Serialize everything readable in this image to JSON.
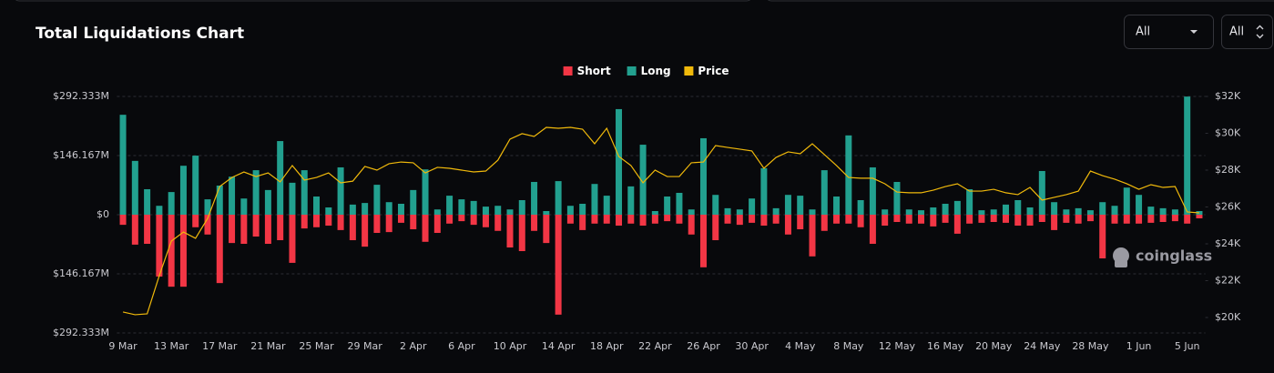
{
  "ui": {
    "dropdowns": [
      "All",
      "All"
    ],
    "watermark": "coinglass"
  },
  "chart_data": {
    "type": "bar",
    "title": "Total Liquidations Chart",
    "categories": [
      "9 Mar",
      null,
      null,
      null,
      "13 Mar",
      null,
      null,
      null,
      "17 Mar",
      null,
      null,
      null,
      "21 Mar",
      null,
      null,
      null,
      "25 Mar",
      null,
      null,
      null,
      "29 Mar",
      null,
      null,
      null,
      "2 Apr",
      null,
      null,
      null,
      "6 Apr",
      null,
      null,
      null,
      "10 Apr",
      null,
      null,
      null,
      "14 Apr",
      null,
      null,
      null,
      "18 Apr",
      null,
      null,
      null,
      "22 Apr",
      null,
      null,
      null,
      "26 Apr",
      null,
      null,
      null,
      "30 Apr",
      null,
      null,
      null,
      "4 May",
      null,
      null,
      null,
      "8 May",
      null,
      null,
      null,
      "12 May",
      null,
      null,
      null,
      "16 May",
      null,
      null,
      null,
      "20 May",
      null,
      null,
      null,
      "24 May",
      null,
      null,
      null,
      "28 May",
      null,
      null,
      null,
      "1 Jun",
      null,
      null,
      null,
      "5 Jun",
      null
    ],
    "series": [
      {
        "name": "Short",
        "color": "#f23645",
        "values": [
          -25,
          -74,
          -72,
          -153,
          -178,
          -178,
          -31,
          -49,
          -169,
          -70,
          -72,
          -54,
          -72,
          -63,
          -119,
          -34,
          -31,
          -27,
          -38,
          -63,
          -79,
          -45,
          -43,
          -20,
          -36,
          -67,
          -45,
          -22,
          -16,
          -25,
          -31,
          -40,
          -81,
          -90,
          -40,
          -70,
          -247,
          -22,
          -38,
          -22,
          -22,
          -27,
          -22,
          -27,
          -22,
          -16,
          -22,
          -49,
          -130,
          -63,
          -22,
          -25,
          -20,
          -27,
          -22,
          -49,
          -36,
          -103,
          -40,
          -22,
          -22,
          -31,
          -72,
          -27,
          -18,
          -22,
          -22,
          -29,
          -20,
          -47,
          -22,
          -20,
          -18,
          -20,
          -27,
          -27,
          -18,
          -38,
          -20,
          -22,
          -16,
          -108,
          -22,
          -22,
          -22,
          -20,
          -18,
          -16,
          -22,
          -9
        ]
      },
      {
        "name": "Long",
        "color": "#22a08f",
        "values": [
          247,
          133,
          63,
          22,
          56,
          121,
          146,
          38,
          72,
          94,
          40,
          110,
          61,
          182,
          79,
          110,
          45,
          18,
          117,
          25,
          29,
          74,
          31,
          27,
          61,
          112,
          13,
          47,
          38,
          34,
          20,
          22,
          13,
          36,
          81,
          9,
          83,
          22,
          27,
          76,
          47,
          261,
          70,
          173,
          9,
          45,
          54,
          13,
          189,
          49,
          16,
          13,
          40,
          115,
          16,
          49,
          47,
          13,
          110,
          45,
          196,
          36,
          117,
          13,
          81,
          13,
          11,
          18,
          27,
          34,
          63,
          11,
          13,
          25,
          36,
          18,
          108,
          31,
          13,
          16,
          11,
          31,
          22,
          67,
          49,
          20,
          16,
          13,
          292,
          9
        ]
      },
      {
        "name": "Price",
        "color": "#f0b90b",
        "type": "line",
        "axis": "y2",
        "values": [
          20300,
          20150,
          20200,
          22270,
          24150,
          24640,
          24300,
          25380,
          27110,
          27600,
          27900,
          27650,
          27850,
          27360,
          28250,
          27460,
          27600,
          27850,
          27310,
          27400,
          28200,
          28000,
          28350,
          28440,
          28400,
          27850,
          28150,
          28100,
          28000,
          27900,
          27950,
          28540,
          29680,
          29980,
          29830,
          30320,
          30270,
          30320,
          30220,
          29430,
          30270,
          28740,
          28250,
          27310,
          28000,
          27650,
          27650,
          28400,
          28440,
          29330,
          29230,
          29140,
          29040,
          28100,
          28690,
          28990,
          28890,
          29430,
          28840,
          28250,
          27600,
          27560,
          27560,
          27260,
          26810,
          26770,
          26770,
          26910,
          27110,
          27260,
          26860,
          26860,
          26960,
          26770,
          26670,
          27060,
          26370,
          26520,
          26670,
          26860,
          27950,
          27700,
          27510,
          27260,
          26960,
          27210,
          27060,
          27110,
          25730,
          25680
        ]
      }
    ],
    "ylim": [
      -292.333,
      292.333
    ],
    "yticks": [
      {
        "value": 292.333,
        "label": "$292.333M"
      },
      {
        "value": 146.167,
        "label": "$146.167M"
      },
      {
        "value": 0,
        "label": "$0"
      },
      {
        "value": -146.167,
        "label": "$146.167M"
      },
      {
        "value": -292.333,
        "label": "$292.333M"
      }
    ],
    "y2lim": [
      19160,
      32000
    ],
    "y2ticks": [
      {
        "value": 32000,
        "label": "$32K"
      },
      {
        "value": 30000,
        "label": "$30K"
      },
      {
        "value": 28000,
        "label": "$28K"
      },
      {
        "value": 26000,
        "label": "$26K"
      },
      {
        "value": 24000,
        "label": "$24K"
      },
      {
        "value": 22000,
        "label": "$22K"
      },
      {
        "value": 20000,
        "label": "$20K"
      }
    ],
    "grid": true,
    "legend": "top"
  }
}
